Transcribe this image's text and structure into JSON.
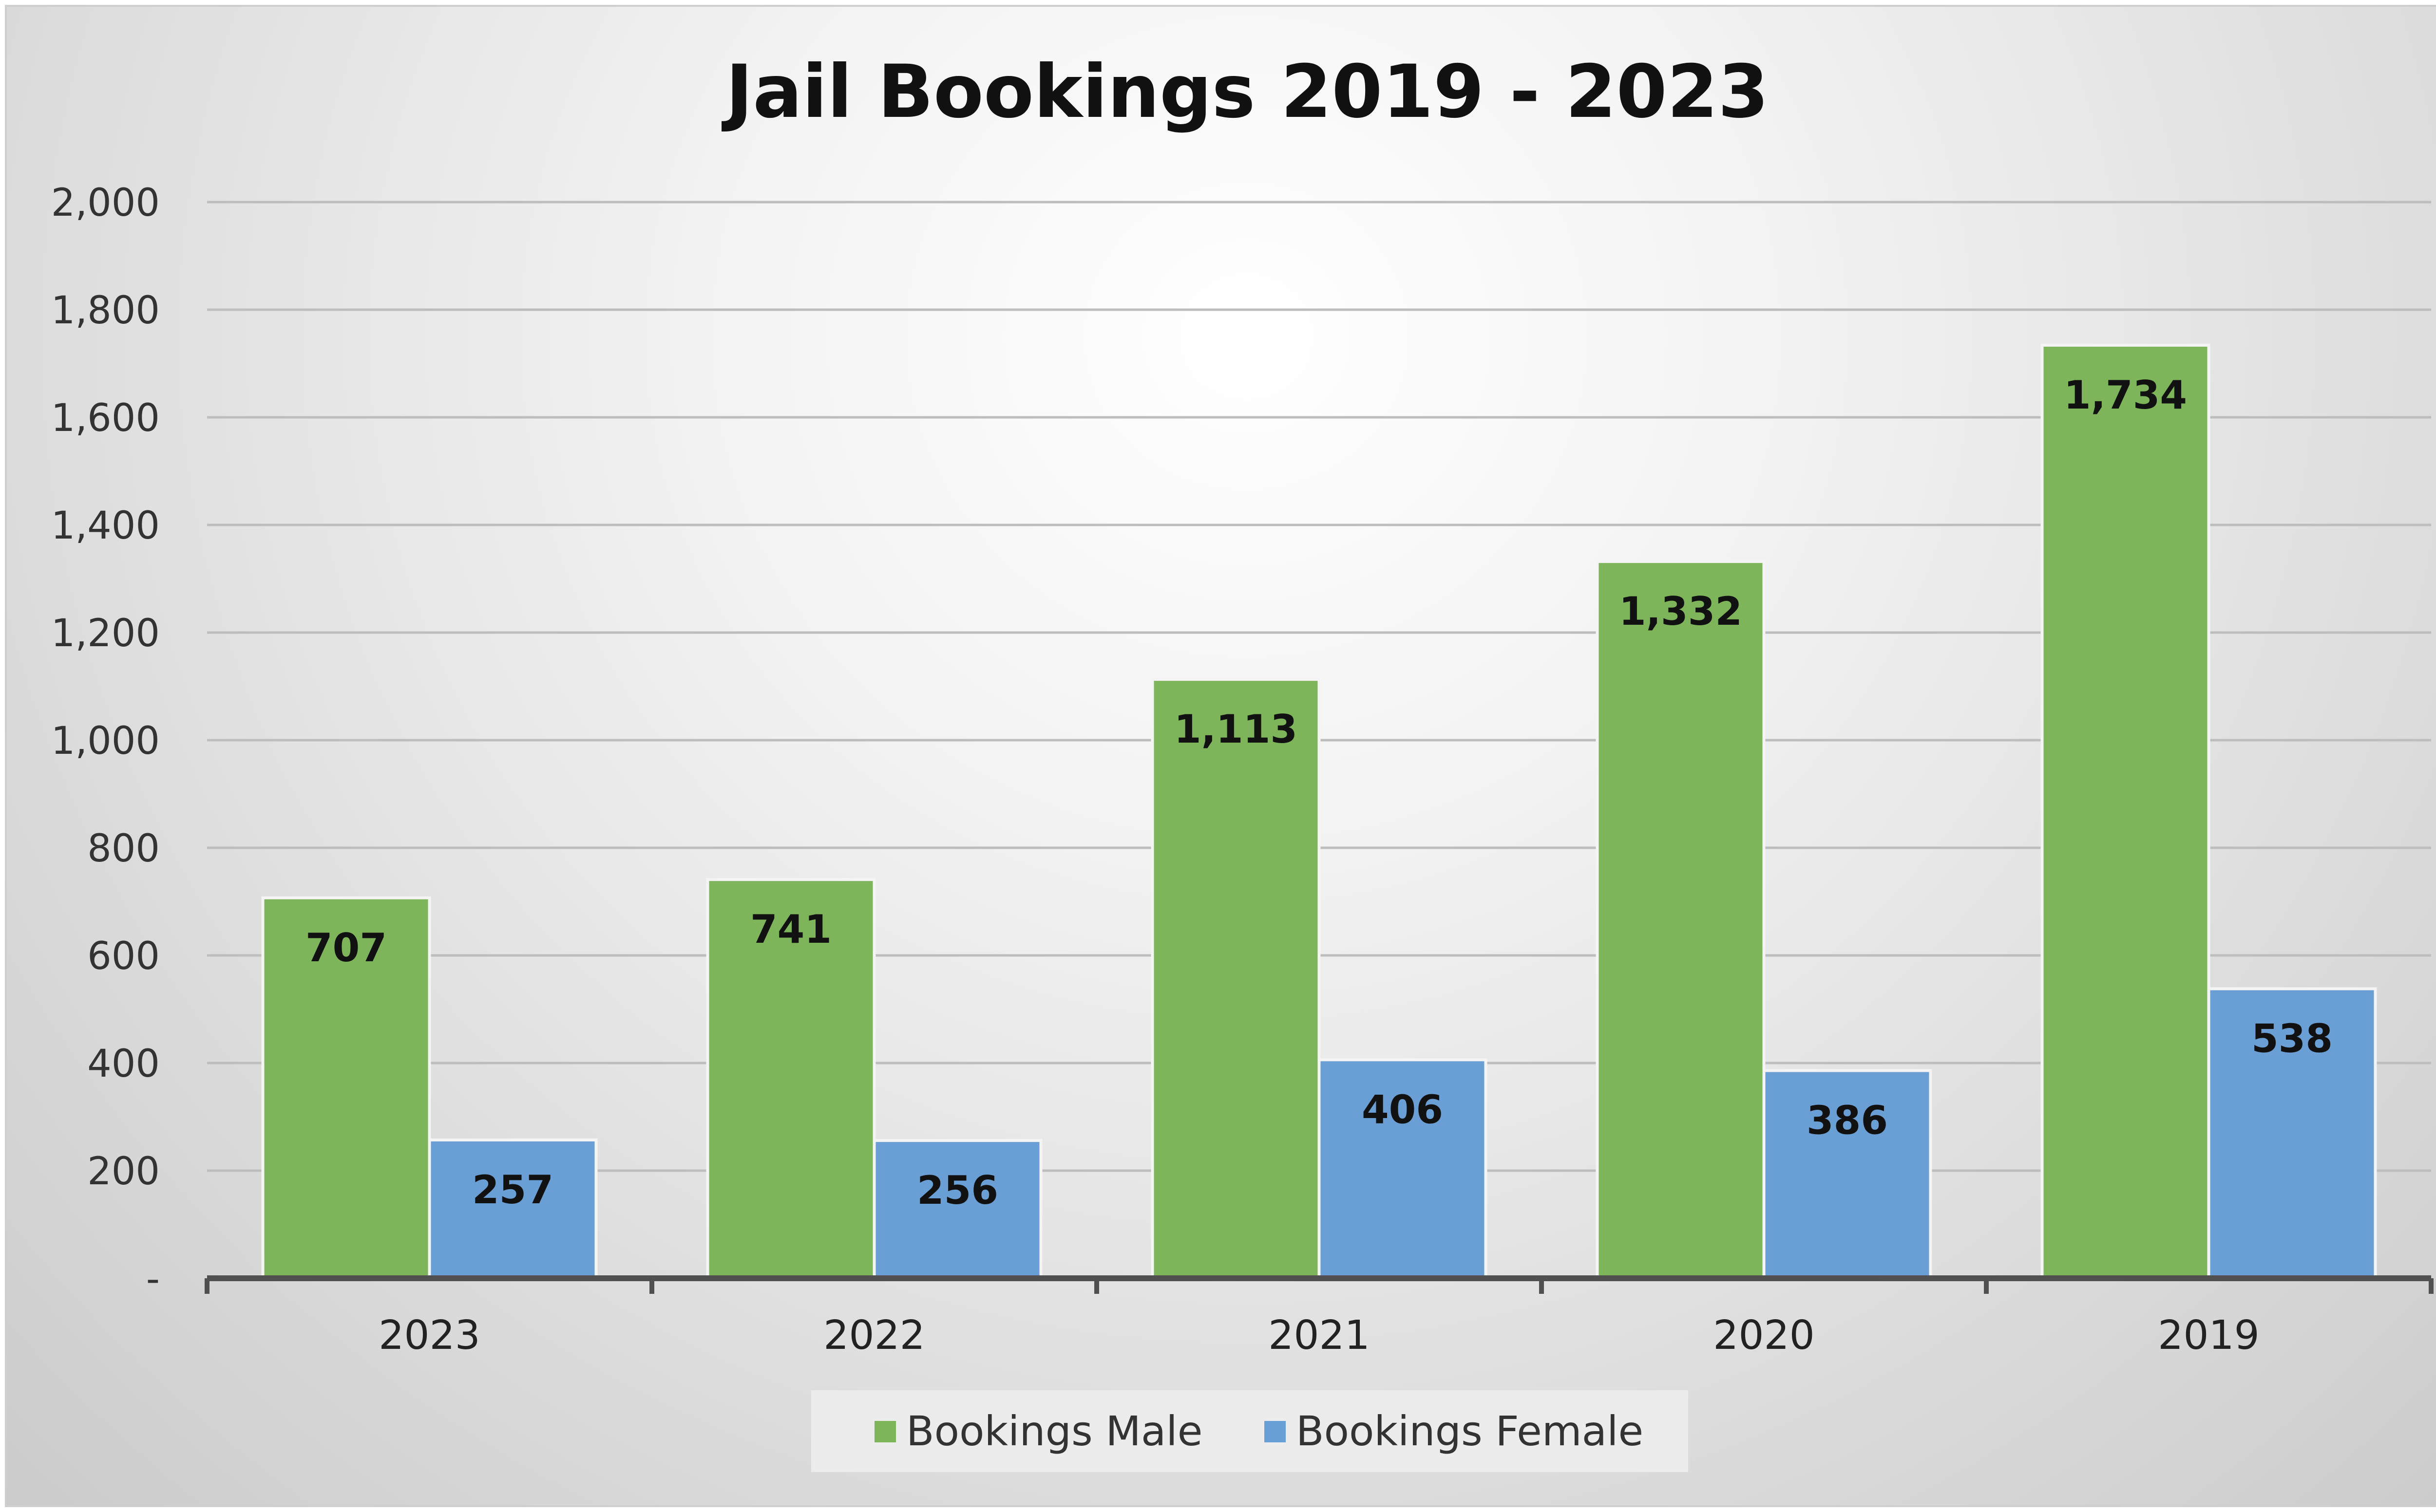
{
  "chart_data": {
    "type": "bar",
    "title": "Jail Bookings 2019 - 2023",
    "xlabel": "",
    "ylabel": "",
    "categories": [
      "2023",
      "2022",
      "2021",
      "2020",
      "2019"
    ],
    "series": [
      {
        "name": "Bookings Male",
        "values": [
          707,
          741,
          1113,
          1332,
          1734
        ],
        "value_labels": [
          "707",
          "741",
          "1,113",
          "1,332",
          "1,734"
        ],
        "color": "#7FB55A"
      },
      {
        "name": "Bookings Female",
        "values": [
          257,
          256,
          406,
          386,
          538
        ],
        "value_labels": [
          "257",
          "256",
          "406",
          "386",
          "538"
        ],
        "color": "#6A9FD5"
      }
    ],
    "ylim": [
      0,
      2000
    ],
    "yticks": [
      0,
      200,
      400,
      600,
      800,
      1000,
      1200,
      1400,
      1600,
      1800,
      2000
    ],
    "ytick_labels": [
      "-",
      "200",
      "400",
      "600",
      "800",
      "1,000",
      "1,200",
      "1,400",
      "1,600",
      "1,800",
      "2,000"
    ],
    "grid": true,
    "legend_position": "bottom"
  }
}
